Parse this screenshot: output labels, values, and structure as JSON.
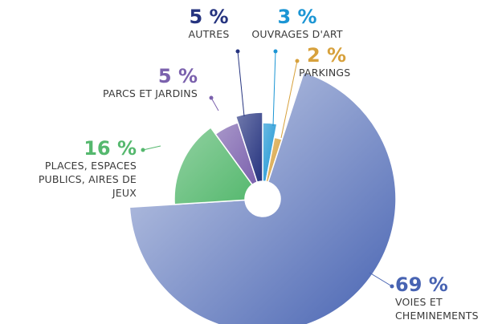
{
  "chart_data": {
    "type": "pie",
    "categories": [
      "OUVRAGES D'ART",
      "PARKINGS",
      "VOIES ET CHEMINEMENTS",
      "PLACES, ESPACES PUBLICS, AIRES DE JEUX",
      "PARCS ET JARDINS",
      "AUTRES"
    ],
    "values": [
      3,
      2,
      69,
      16,
      5,
      5
    ],
    "value_labels": [
      "3 %",
      "2 %",
      "69 %",
      "16 %",
      "5 %",
      "5 %"
    ],
    "colors": [
      "#1b95d4",
      "#d7a13c",
      "#4763b2",
      "#55b86e",
      "#7b61ad",
      "#25337f"
    ]
  }
}
